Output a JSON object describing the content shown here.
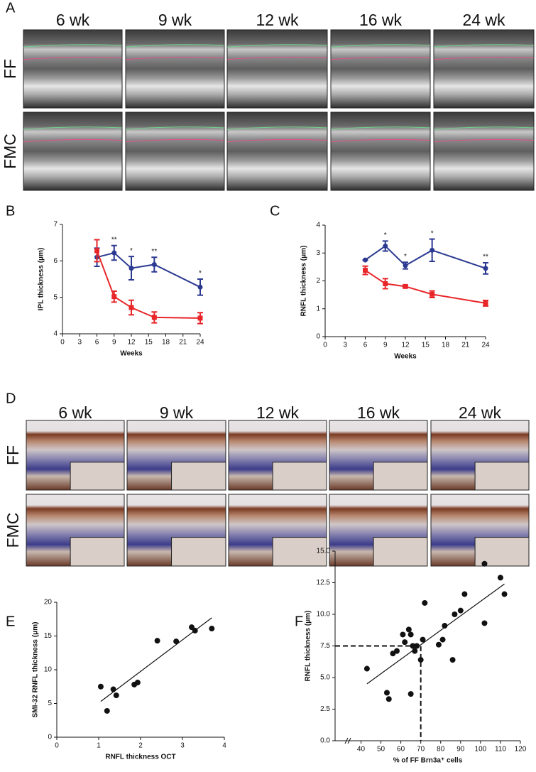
{
  "figure": {
    "labels": [
      "A",
      "B",
      "C",
      "D",
      "E",
      "F"
    ],
    "oct": {
      "columns": [
        "6 wk",
        "9 wk",
        "12 wk",
        "16 wk",
        "24 wk"
      ],
      "rows": [
        "FF",
        "FMC"
      ]
    },
    "histology": {
      "columns": [
        "6 wk",
        "9 wk",
        "12 wk",
        "16 wk",
        "24 wk"
      ],
      "rows": [
        "FF",
        "FMC"
      ]
    }
  },
  "chart_data": [
    {
      "type": "line",
      "x_label": "Weeks",
      "y_label": "IPL thickness (μm)",
      "x": [
        6,
        9,
        12,
        16,
        24
      ],
      "series": [
        {
          "color": "#2b3990",
          "marker": "circle",
          "values": [
            6.1,
            6.22,
            5.8,
            5.9,
            5.28
          ],
          "errors": [
            0.25,
            0.2,
            0.32,
            0.2,
            0.22
          ]
        },
        {
          "color": "#e8262a",
          "marker": "square",
          "values": [
            6.28,
            5.02,
            4.72,
            4.45,
            4.43
          ],
          "errors": [
            0.3,
            0.15,
            0.2,
            0.15,
            0.15
          ]
        }
      ],
      "annotations": [
        {
          "text": "**",
          "x": 9
        },
        {
          "text": "*",
          "x": 12
        },
        {
          "text": "**",
          "x": 16
        },
        {
          "text": "*",
          "x": 24
        }
      ],
      "xlim": [
        0,
        24
      ],
      "xticks": [
        0,
        3,
        6,
        9,
        12,
        15,
        18,
        21,
        24
      ],
      "ylim": [
        4,
        7
      ],
      "yticks": [
        4,
        5,
        6,
        7
      ]
    },
    {
      "type": "line",
      "x_label": "Weeks",
      "y_label": "RNFL thickness (μm)",
      "x": [
        6,
        9,
        12,
        16,
        24
      ],
      "series": [
        {
          "color": "#2b3990",
          "marker": "circle",
          "values": [
            2.75,
            3.25,
            2.55,
            3.1,
            2.45
          ],
          "errors": [
            0,
            0.18,
            0.12,
            0.4,
            0.2
          ]
        },
        {
          "color": "#e8262a",
          "marker": "square",
          "values": [
            2.38,
            1.9,
            1.8,
            1.52,
            1.2
          ],
          "errors": [
            0.15,
            0.18,
            0.04,
            0.12,
            0.1
          ]
        }
      ],
      "annotations": [
        {
          "text": "*",
          "x": 9
        },
        {
          "text": "*",
          "x": 12
        },
        {
          "text": "*",
          "x": 16
        },
        {
          "text": "**",
          "x": 24
        }
      ],
      "xlim": [
        0,
        24
      ],
      "xticks": [
        0,
        3,
        6,
        9,
        12,
        15,
        18,
        21,
        24
      ],
      "ylim": [
        0,
        4
      ],
      "yticks": [
        0,
        1,
        2,
        3,
        4
      ]
    },
    {
      "type": "scatter",
      "x_label": "RNFL thickness OCT",
      "y_label": "SMI-32 RNFL thickness (μm)",
      "color": "#111111",
      "x": [
        1.05,
        1.2,
        1.35,
        1.42,
        1.85,
        1.93,
        2.4,
        2.85,
        3.22,
        3.3,
        3.7
      ],
      "values": [
        7.5,
        3.9,
        7.1,
        6.2,
        7.8,
        8.1,
        14.3,
        14.2,
        16.3,
        15.8,
        16.1
      ],
      "fit_line": {
        "x": [
          1.05,
          3.7
        ],
        "y": [
          5.3,
          17.7
        ]
      },
      "xlim": [
        0,
        4
      ],
      "xticks": [
        0,
        1,
        2,
        3,
        4
      ],
      "ylim": [
        0,
        20
      ],
      "yticks": [
        0,
        5,
        10,
        15,
        20
      ]
    },
    {
      "type": "scatter",
      "x_label": "% of FF Brn3a⁺ cells",
      "y_label": "RNFL thickness (μm)",
      "color": "#111111",
      "x": [
        43,
        53,
        54,
        56,
        58,
        61,
        62,
        64,
        65,
        65,
        66,
        67,
        68,
        70,
        71,
        72,
        79,
        81,
        82,
        86,
        87,
        90,
        92,
        102,
        102,
        110,
        112
      ],
      "values": [
        5.7,
        3.8,
        3.3,
        6.9,
        7.1,
        8.4,
        7.8,
        8.8,
        8.4,
        3.7,
        7.5,
        7.1,
        7.5,
        6.4,
        8.0,
        10.9,
        7.6,
        8.0,
        9.1,
        6.4,
        10.0,
        10.3,
        11.6,
        9.3,
        14.0,
        12.9,
        11.6
      ],
      "fit_line": {
        "x": [
          43,
          112
        ],
        "y": [
          4.5,
          12.4
        ]
      },
      "reference": {
        "x": 70,
        "y": 7.5
      },
      "xlim": [
        27,
        120
      ],
      "xticks": [
        40,
        50,
        60,
        70,
        80,
        90,
        100,
        110,
        120
      ],
      "ylim": [
        0,
        15
      ],
      "yticks": [
        {
          "value": 0,
          "label": "0.0"
        },
        {
          "value": 2.5,
          "label": "2.5"
        },
        {
          "value": 5,
          "label": "5.0"
        },
        {
          "value": 7.5,
          "label": "7.5"
        },
        {
          "value": 10,
          "label": "10.0"
        },
        {
          "value": 12.5,
          "label": "12.5"
        },
        {
          "value": 15,
          "label": "15.0"
        }
      ]
    }
  ]
}
